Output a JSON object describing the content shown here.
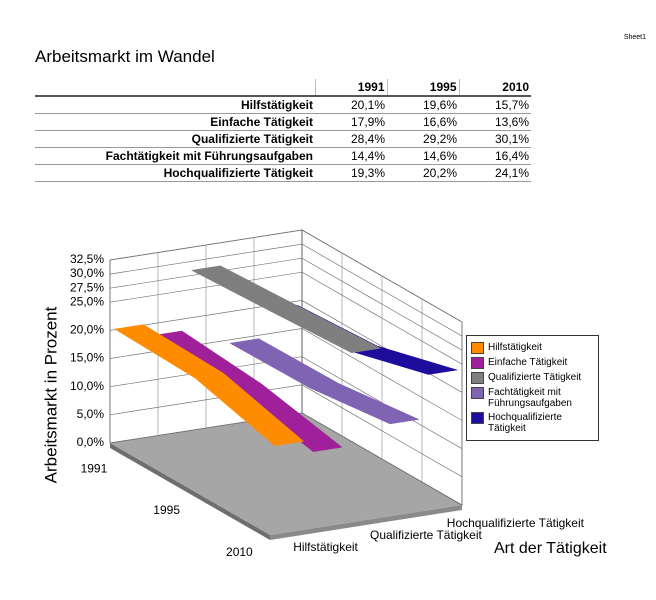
{
  "sheet_label": "Sheet1",
  "title": "Arbeitsmarkt im Wandel",
  "table": {
    "header": [
      "1991",
      "1995",
      "2010"
    ],
    "rows": [
      [
        "Hilfstätigkeit",
        "20,1%",
        "19,6%",
        "15,7%"
      ],
      [
        "Einfache Tätigkeit",
        "17,9%",
        "16,6%",
        "13,6%"
      ],
      [
        "Qualifizierte Tätigkeit",
        "28,4%",
        "29,2%",
        "30,1%"
      ],
      [
        "Fachtätigkeit mit Führungsaufgaben",
        "14,4%",
        "14,6%",
        "16,4%"
      ],
      [
        "Hochqualifizierte Tätigkeit",
        "19,3%",
        "20,2%",
        "24,1%"
      ]
    ]
  },
  "chart_data": {
    "type": "ribbon3d",
    "y_label": "Arbeitsmarkt in Prozent",
    "x_label": "Art der Tätigkeit",
    "categories": [
      "1991",
      "1995",
      "2010"
    ],
    "series": [
      {
        "name": "Hilfstätigkeit",
        "color": "#ff8c00",
        "values": [
          20.1,
          19.6,
          15.7
        ]
      },
      {
        "name": "Einfache Tätigkeit",
        "color": "#a0209c",
        "values": [
          17.9,
          16.6,
          13.6
        ]
      },
      {
        "name": "Qualifizierte Tätigkeit",
        "color": "#7f7f7f",
        "values": [
          28.4,
          29.2,
          30.1
        ]
      },
      {
        "name": "Fachtätigkeit mit Führungsaufgaben",
        "color": "#8064b4",
        "values": [
          14.4,
          14.6,
          16.4
        ]
      },
      {
        "name": "Hochqualifizierte Tätigkeit",
        "color": "#1e0c9c",
        "values": [
          19.3,
          20.2,
          24.1
        ]
      }
    ],
    "depth_labeled_series": [
      0,
      2,
      4
    ],
    "ylim": [
      0,
      32.5
    ],
    "yticks": [
      {
        "value": 0,
        "label": "0,0%"
      },
      {
        "value": 5,
        "label": "5,0%"
      },
      {
        "value": 10,
        "label": "10,0%"
      },
      {
        "value": 15,
        "label": "15,0%"
      },
      {
        "value": 20,
        "label": "20,0%"
      },
      {
        "value": 25,
        "label": "25,0%"
      },
      {
        "value": 27.5,
        "label": "27,5%"
      },
      {
        "value": 30,
        "label": "30,0%"
      },
      {
        "value": 32.5,
        "label": "32,5%"
      }
    ],
    "grid": true,
    "legend": "right"
  }
}
